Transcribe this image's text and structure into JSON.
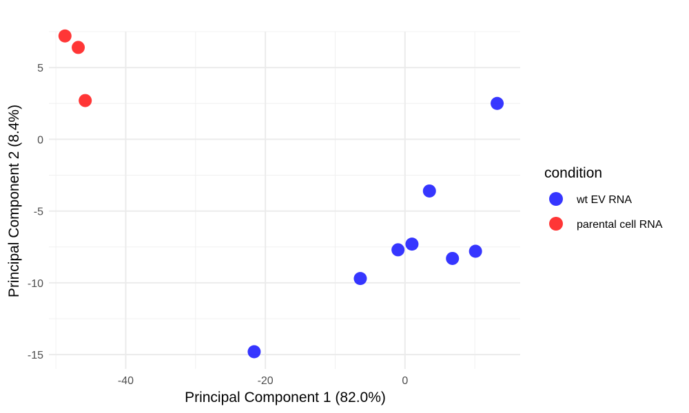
{
  "chart_data": {
    "type": "scatter",
    "xlabel": "Principal Component 1 (82.0%)",
    "ylabel": "Principal Component 2 (8.4%)",
    "xlim": [
      -51,
      16.5
    ],
    "ylim": [
      -16,
      7.5
    ],
    "x_ticks": [
      -40,
      -20,
      0
    ],
    "x_tick_labels": [
      "-40",
      "-20",
      "0"
    ],
    "y_ticks": [
      5,
      0,
      -5,
      -10,
      -15
    ],
    "y_tick_labels": [
      "5",
      "0",
      "-5",
      "-10",
      "-15"
    ],
    "grid": true,
    "legend": {
      "title": "condition",
      "position": "right"
    },
    "series": [
      {
        "name": "wt EV RNA",
        "color": "#1a1aff",
        "points": [
          {
            "x": 13.2,
            "y": 2.5
          },
          {
            "x": 3.5,
            "y": -3.6
          },
          {
            "x": 1.0,
            "y": -7.3
          },
          {
            "x": -1.0,
            "y": -7.7
          },
          {
            "x": 6.8,
            "y": -8.3
          },
          {
            "x": 10.1,
            "y": -7.8
          },
          {
            "x": -6.4,
            "y": -9.7
          },
          {
            "x": -21.6,
            "y": -14.8
          }
        ]
      },
      {
        "name": "parental cell RNA",
        "color": "#ff1a1a",
        "points": [
          {
            "x": -48.7,
            "y": 7.2
          },
          {
            "x": -46.8,
            "y": 6.4
          },
          {
            "x": -45.8,
            "y": 2.7
          }
        ]
      }
    ]
  }
}
